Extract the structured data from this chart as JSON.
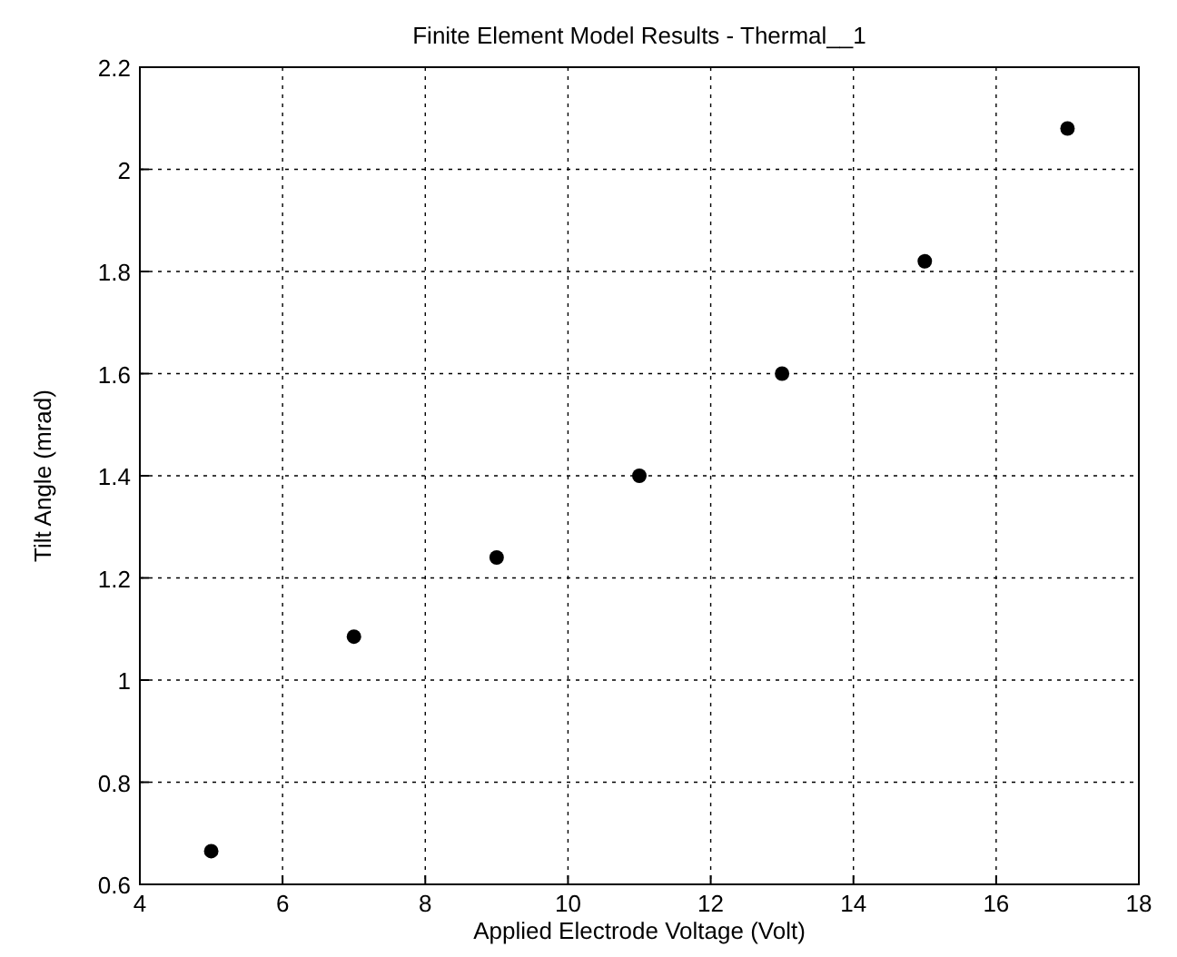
{
  "chart_data": {
    "type": "scatter",
    "title": "Finite Element Model Results - Thermal__1",
    "xlabel": "Applied Electrode Voltage (Volt)",
    "ylabel": "Tilt Angle (mrad)",
    "x": [
      5,
      7,
      9,
      11,
      13,
      15,
      17
    ],
    "series": [
      {
        "color": "#000000",
        "values": [
          0.665,
          1.085,
          1.24,
          1.4,
          1.6,
          1.82,
          2.08
        ]
      }
    ],
    "xlim": [
      4,
      18
    ],
    "xticks": [
      4,
      6,
      8,
      10,
      12,
      14,
      16,
      18
    ],
    "ylim": [
      0.6,
      2.2
    ],
    "yticks": [
      0.6,
      0.8,
      1,
      1.2,
      1.4,
      1.6,
      1.8,
      2,
      2.2
    ],
    "grid": true,
    "marker": "circle"
  }
}
